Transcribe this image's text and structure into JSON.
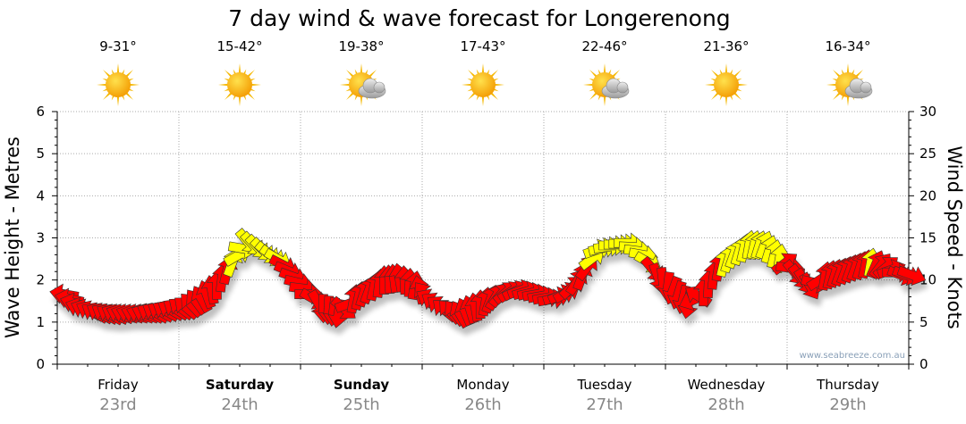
{
  "chart_data": {
    "type": "line",
    "title": "7 day wind & wave forecast for Longerenong",
    "ylabel_left": "Wave Height - Metres",
    "ylabel_right": "Wind Speed - Knots",
    "ylim_left": [
      0,
      6
    ],
    "ylim_right": [
      0,
      30
    ],
    "yticks_left": [
      "0",
      "1",
      "2",
      "3",
      "4",
      "5",
      "6"
    ],
    "yticks_right": [
      "0",
      "5",
      "10",
      "15",
      "20",
      "25",
      "30"
    ],
    "grid": true,
    "days": [
      {
        "name": "Friday",
        "date": "23rd",
        "temp": "9-31°",
        "icon": "sunny",
        "bold": false
      },
      {
        "name": "Saturday",
        "date": "24th",
        "temp": "15-42°",
        "icon": "sunny",
        "bold": true
      },
      {
        "name": "Sunday",
        "date": "25th",
        "temp": "19-38°",
        "icon": "partly-cloudy",
        "bold": true
      },
      {
        "name": "Monday",
        "date": "26th",
        "temp": "17-43°",
        "icon": "sunny",
        "bold": false
      },
      {
        "name": "Tuesday",
        "date": "27th",
        "temp": "22-46°",
        "icon": "partly-cloudy",
        "bold": false
      },
      {
        "name": "Wednesday",
        "date": "28th",
        "temp": "21-36°",
        "icon": "sunny",
        "bold": false
      },
      {
        "name": "Thursday",
        "date": "29th",
        "temp": "16-34°",
        "icon": "partly-cloudy",
        "bold": false
      }
    ],
    "series": [
      {
        "name": "Wind speed (knots), 3-hourly",
        "values": [
          8.3,
          6.7,
          6.1,
          5.9,
          5.9,
          5.9,
          6.1,
          6.4,
          6.7,
          7.7,
          9.3,
          12,
          14.6,
          13.6,
          12.5,
          10.4,
          8.3,
          6.7,
          6.1,
          7.7,
          8.8,
          9.9,
          10.2,
          9.3,
          7.7,
          6.4,
          5.9,
          6.7,
          7.7,
          8.5,
          8.8,
          8.3,
          7.7,
          8.5,
          10.4,
          13.6,
          14.1,
          14.4,
          13,
          10.4,
          8.8,
          7.2,
          8.5,
          11.5,
          13,
          14.1,
          14.1,
          12.5,
          10.9,
          9.3,
          10.4,
          10.9,
          11.5,
          12,
          11.5,
          10.6
        ],
        "direction_from_deg": [
          100,
          110,
          120,
          120,
          110,
          110,
          120,
          120,
          130,
          150,
          180,
          200,
          320,
          315,
          300,
          290,
          270,
          0,
          10,
          190,
          200,
          180,
          170,
          190,
          120,
          130,
          150,
          170,
          200,
          230,
          250,
          260,
          260,
          240,
          200,
          250,
          270,
          270,
          280,
          340,
          20,
          10,
          180,
          190,
          200,
          190,
          200,
          190,
          320,
          330,
          190,
          200,
          200,
          190,
          230,
          290
        ]
      }
    ],
    "color_threshold_knots": 12,
    "colors": {
      "low": "#ff0000",
      "high": "#ffff00",
      "outline": "#333333"
    }
  },
  "watermark": "www.seabreeze.com.au"
}
